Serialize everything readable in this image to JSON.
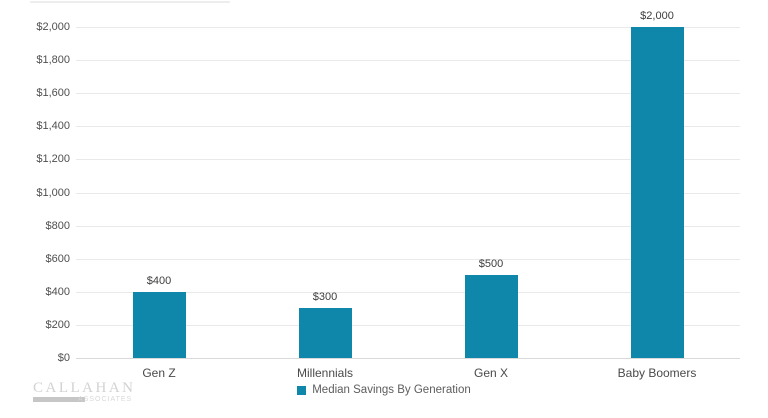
{
  "chart_data": {
    "type": "bar",
    "categories": [
      "Gen Z",
      "Millennials",
      "Gen X",
      "Baby Boomers"
    ],
    "values": [
      400,
      300,
      500,
      2000
    ],
    "value_labels": [
      "$400",
      "$300",
      "$500",
      "$2,000"
    ],
    "series_name": "Median Savings By Generation",
    "title": "",
    "xlabel": "",
    "ylabel": "",
    "ylim": [
      0,
      2000
    ],
    "ytick_values": [
      0,
      200,
      400,
      600,
      800,
      1000,
      1200,
      1400,
      1600,
      1800,
      2000
    ],
    "ytick_labels": [
      "$0",
      "$200",
      "$400",
      "$600",
      "$800",
      "$1,000",
      "$1,200",
      "$1,400",
      "$1,600",
      "$1,800",
      "$2,000"
    ],
    "grid": true,
    "legend_position": "bottom",
    "bar_color": "#0E87AB"
  },
  "legend": {
    "label": "Median Savings By Generation",
    "marker_color": "#0E87AB"
  },
  "watermark": {
    "name": "CALLAHAN",
    "subtext": "ASSOCIATES"
  }
}
